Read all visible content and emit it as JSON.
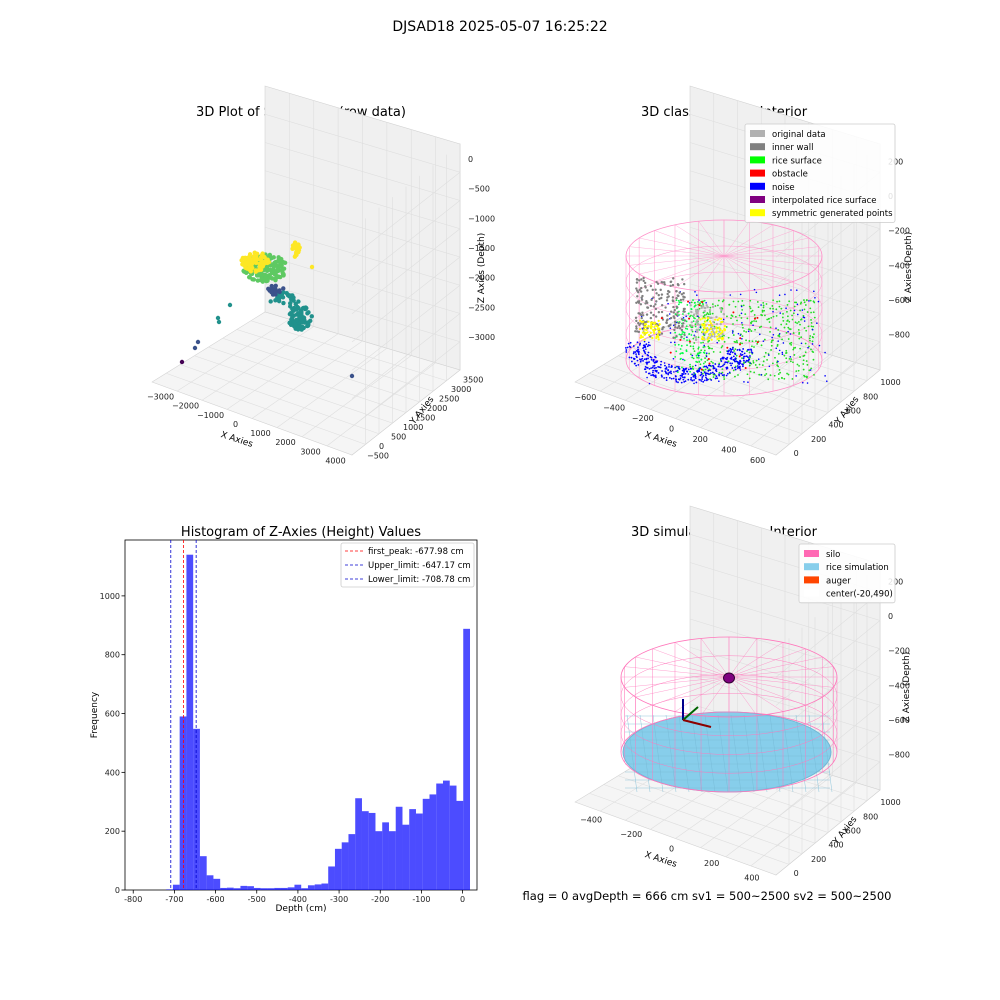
{
  "suptitle": "DJSAD18 2025-05-07 16:25:22",
  "footer": "flag = 0     avgDepth = 666 cm  sv1 = 500~2500  sv2 = 500~2500",
  "chart_data": [
    {
      "type": "scatter",
      "title": "3D Plot of Silo Interior(row data)",
      "xlabel": "X Axies",
      "ylabel": "Y Axies",
      "zlabel": "Z Axies (Depth)",
      "xticks": [
        "−3000",
        "−2000",
        "−1000",
        "0",
        "1000",
        "2000",
        "3000",
        "4000"
      ],
      "yticks": [
        "−500",
        "0",
        "500",
        "1000",
        "1500",
        "2000",
        "2500",
        "3000",
        "3500"
      ],
      "zticks": [
        "0",
        "−500",
        "−1000",
        "−1500",
        "−2000",
        "−2500",
        "−3000"
      ],
      "xlim": [
        -3300,
        4200
      ],
      "ylim": [
        -600,
        3800
      ],
      "zlim": [
        -3300,
        100
      ],
      "colormap": [
        "#440154",
        "#3b528b",
        "#21918c",
        "#5ec962",
        "#fde725"
      ]
    },
    {
      "type": "scatter",
      "title": "3D classify of Silo Interior",
      "xlabel": "X Axies",
      "ylabel": "Y Axies",
      "zlabel": "Z Axies (Depth)",
      "xticks": [
        "−600",
        "−400",
        "−200",
        "0",
        "200",
        "400",
        "600"
      ],
      "yticks": [
        "0",
        "200",
        "400",
        "600",
        "800",
        "1000"
      ],
      "zticks": [
        "200",
        "0",
        "−200",
        "−400",
        "−600",
        "−800"
      ],
      "xlim": [
        -650,
        650
      ],
      "ylim": [
        -100,
        1100
      ],
      "zlim": [
        -900,
        250
      ],
      "legend": [
        {
          "label": "original data",
          "color": "#b0b0b0"
        },
        {
          "label": "inner wall",
          "color": "#808080"
        },
        {
          "label": "rice surface",
          "color": "#00ff00"
        },
        {
          "label": "obstacle",
          "color": "#ff0000"
        },
        {
          "label": "noise",
          "color": "#0000ff"
        },
        {
          "label": "interpolated rice surface",
          "color": "#800080"
        },
        {
          "label": "symmetric generated points",
          "color": "#ffff00"
        }
      ],
      "legend_position": "upper right"
    },
    {
      "type": "bar",
      "title": "Histogram of Z-Axies (Height) Values",
      "xlabel": "Depth (cm)",
      "ylabel": "Frequency",
      "xlim": [
        -820,
        35
      ],
      "ylim": [
        0,
        1190
      ],
      "xticks": [
        -800,
        -700,
        -600,
        -500,
        -400,
        -300,
        -200,
        -100,
        0
      ],
      "yticks": [
        0,
        200,
        400,
        600,
        800,
        1000
      ],
      "bin_start": -720,
      "bin_width": 16.4,
      "values": [
        2,
        18,
        590,
        1140,
        548,
        115,
        50,
        38,
        7,
        8,
        6,
        14,
        13,
        7,
        6,
        6,
        7,
        7,
        9,
        18,
        6,
        16,
        19,
        22,
        80,
        140,
        162,
        190,
        312,
        268,
        262,
        200,
        230,
        200,
        283,
        222,
        275,
        260,
        310,
        325,
        362,
        372,
        355,
        303,
        888
      ],
      "bar_color": "#0000ff",
      "vlines": [
        {
          "label": "first_peak: -677.98 cm",
          "x": -677.98,
          "color": "#ff0000"
        },
        {
          "label": "Upper_limit: -647.17 cm",
          "x": -647.17,
          "color": "#0000cd"
        },
        {
          "label": "Lower_limit: -708.78 cm",
          "x": -708.78,
          "color": "#0000cd"
        }
      ],
      "legend_position": "upper right"
    },
    {
      "type": "scatter",
      "title": "3D simulation of Silo Interior",
      "xlabel": "X Axies",
      "ylabel": "Y Axies",
      "zlabel": "Z Axies (Depth)",
      "xticks": [
        "−400",
        "−200",
        "0",
        "200",
        "400"
      ],
      "yticks": [
        "0",
        "200",
        "400",
        "600",
        "800",
        "1000"
      ],
      "zticks": [
        "200",
        "0",
        "−200",
        "−400",
        "−600",
        "−800"
      ],
      "xlim": [
        -600,
        600
      ],
      "ylim": [
        -100,
        1100
      ],
      "zlim": [
        -900,
        300
      ],
      "legend": [
        {
          "label": "silo",
          "color": "#ff69b4"
        },
        {
          "label": "rice simulation",
          "color": "#87ceeb"
        },
        {
          "label": "auger",
          "color": "#ff4500"
        },
        {
          "label": "center(-20,490)",
          "color": "#ffffff"
        }
      ],
      "legend_position": "upper right"
    }
  ]
}
